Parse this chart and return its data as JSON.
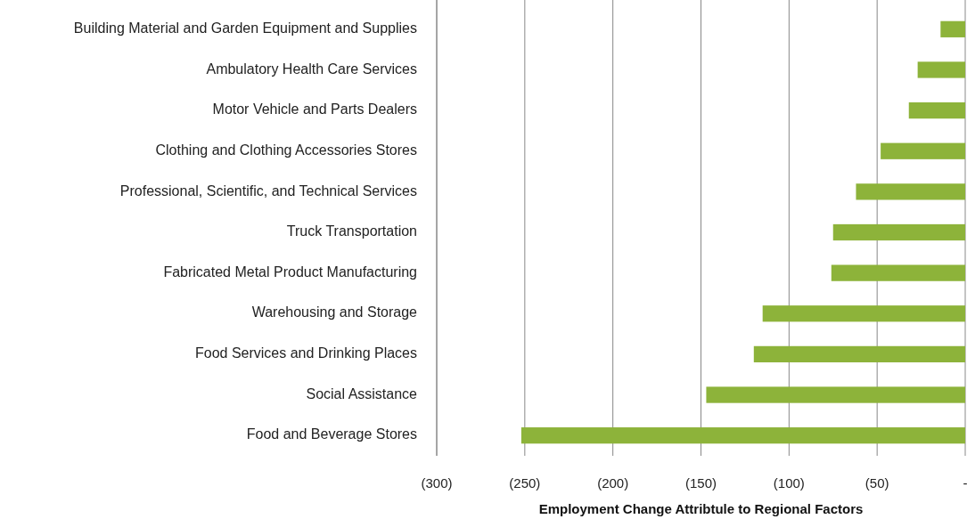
{
  "chart_data": {
    "type": "bar",
    "orientation": "horizontal",
    "xlabel": "Employment Change Attribtule to Regional Factors",
    "categories": [
      "Building Material and Garden Equipment  and Supplies",
      "Ambulatory Health Care Services",
      "Motor Vehicle and Parts Dealers",
      "Clothing and Clothing Accessories Stores",
      "Professional, Scientific, and Technical Services",
      "Truck Transportation",
      "Fabricated Metal Product Manufacturing",
      "Warehousing and Storage",
      "Food Services and Drinking Places",
      "Social Assistance",
      "Food and Beverage Stores"
    ],
    "values": [
      -14,
      -27,
      -32,
      -48,
      -62,
      -75,
      -76,
      -115,
      -120,
      -147,
      -252
    ],
    "color": "#8db33a",
    "xlim": [
      -300,
      0
    ],
    "xticks": [
      {
        "value": -300,
        "label": "(300)"
      },
      {
        "value": -250,
        "label": "(250)"
      },
      {
        "value": -200,
        "label": "(200)"
      },
      {
        "value": -150,
        "label": "(150)"
      },
      {
        "value": -100,
        "label": "(100)"
      },
      {
        "value": -50,
        "label": "(50)"
      },
      {
        "value": 0,
        "label": "-"
      }
    ],
    "grid": "x"
  }
}
